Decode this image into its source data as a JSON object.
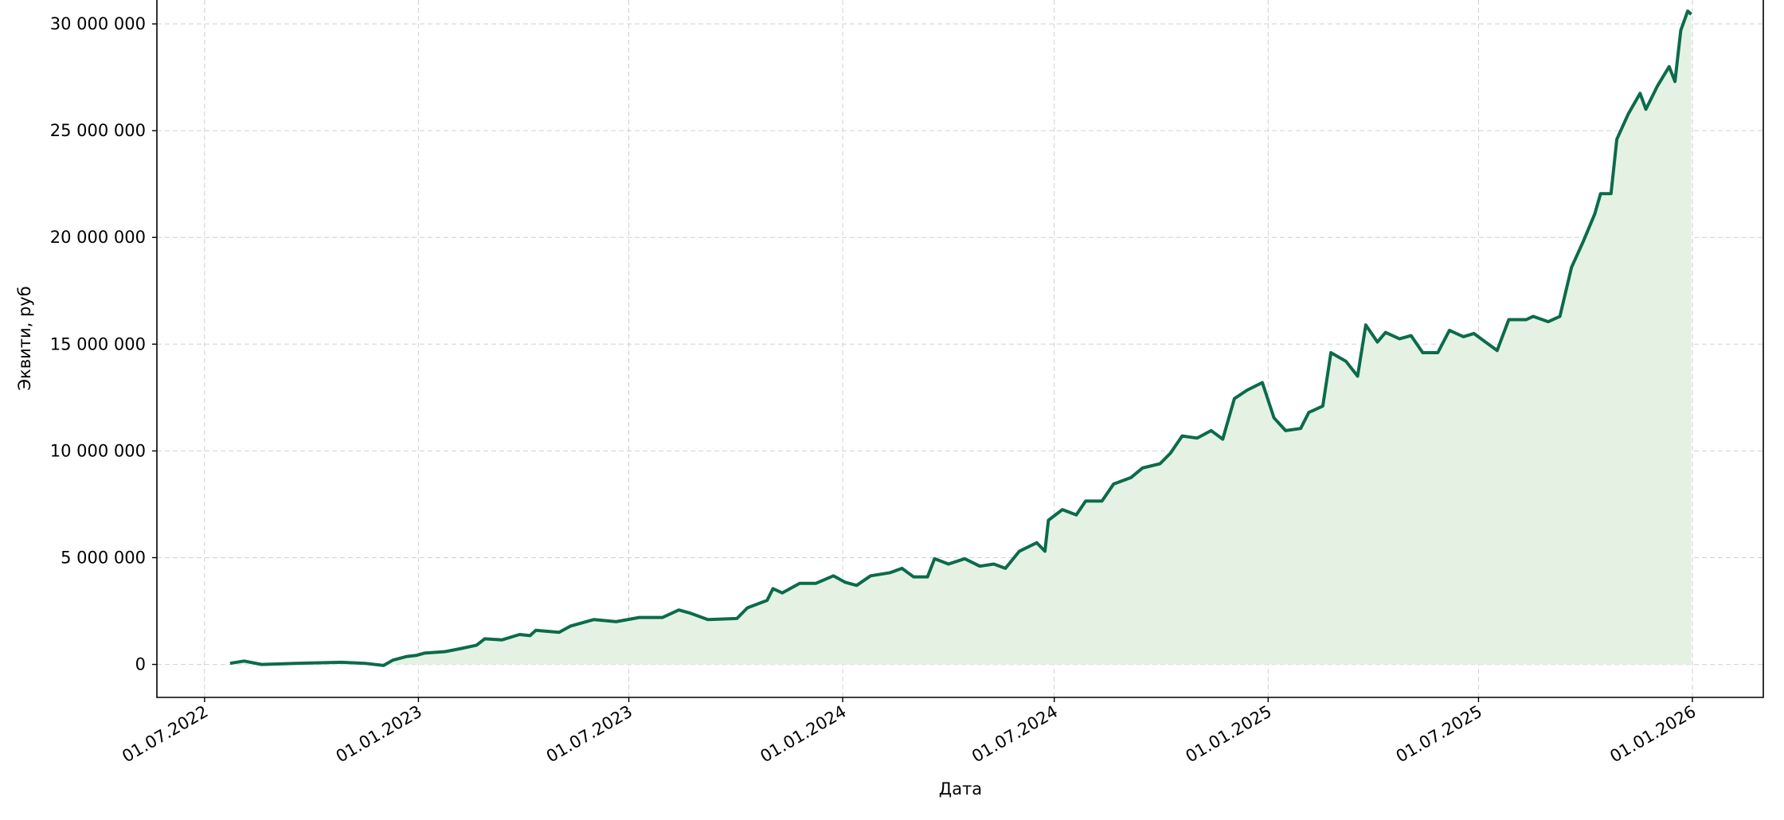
{
  "chart_data": {
    "type": "line",
    "xlabel": "Дата",
    "ylabel": "Эквити, руб",
    "x": [
      "23.07.2022",
      "04.08.2022",
      "19.08.2022",
      "18.09.2022",
      "27.10.2022",
      "16.11.2022",
      "02.12.2022",
      "10.12.2022",
      "22.12.2022",
      "30.12.2022",
      "06.01.2023",
      "24.01.2023",
      "07.02.2023",
      "20.02.2023",
      "27.02.2023",
      "14.03.2023",
      "29.03.2023",
      "07.04.2023",
      "12.04.2023",
      "02.05.2023",
      "12.05.2023",
      "01.06.2023",
      "20.06.2023",
      "10.07.2023",
      "30.07.2023",
      "13.08.2023",
      "23.08.2023",
      "07.09.2023",
      "02.10.2023",
      "11.10.2023",
      "28.10.2023",
      "02.11.2023",
      "10.11.2023",
      "25.11.2023",
      "09.12.2023",
      "24.12.2023",
      "03.01.2024",
      "13.01.2024",
      "25.01.2024",
      "11.02.2024",
      "21.02.2024",
      "02.03.2024",
      "14.03.2024",
      "20.03.2024",
      "01.04.2024",
      "15.04.2024",
      "28.04.2024",
      "10.05.2024",
      "20.05.2024",
      "01.06.2024",
      "16.06.2024",
      "23.06.2024",
      "26.06.2024",
      "08.07.2024",
      "20.07.2024",
      "28.07.2024",
      "11.08.2024",
      "21.08.2024",
      "05.09.2024",
      "15.09.2024",
      "30.09.2024",
      "09.10.2024",
      "19.10.2024",
      "01.11.2024",
      "13.11.2024",
      "23.11.2024",
      "03.12.2024",
      "14.12.2024",
      "27.12.2024",
      "06.01.2025",
      "16.01.2025",
      "29.01.2025",
      "05.02.2025",
      "17.02.2025",
      "24.02.2025",
      "09.03.2025",
      "19.03.2025",
      "26.03.2025",
      "05.04.2025",
      "12.04.2025",
      "24.04.2025",
      "04.05.2025",
      "14.05.2025",
      "27.05.2025",
      "06.06.2025",
      "18.06.2025",
      "27.06.2025",
      "07.07.2025",
      "17.07.2025",
      "27.07.2025",
      "11.08.2025",
      "17.08.2025",
      "30.08.2025",
      "09.09.2025",
      "19.09.2025",
      "29.09.2025",
      "09.10.2025",
      "14.10.2025",
      "23.10.2025",
      "28.10.2025",
      "07.11.2025",
      "17.11.2025",
      "22.11.2025",
      "02.12.2025",
      "12.12.2025",
      "17.12.2025",
      "22.12.2025",
      "26.12.2025",
      "28.12.2025",
      "31.12.2025"
    ],
    "series": [
      {
        "color": "#0b6b4b",
        "fill": "#e5f2e3",
        "values": [
          50000,
          160000,
          0,
          50000,
          100000,
          50000,
          -50000,
          200000,
          370000,
          420000,
          530000,
          600000,
          750000,
          900000,
          1200000,
          1150000,
          1400000,
          1350000,
          1600000,
          1500000,
          1800000,
          2100000,
          2000000,
          2200000,
          2200000,
          2550000,
          2400000,
          2100000,
          2150000,
          2650000,
          3000000,
          3550000,
          3350000,
          3800000,
          3800000,
          4150000,
          3850000,
          3700000,
          4150000,
          4300000,
          4500000,
          4100000,
          4100000,
          4950000,
          4700000,
          4950000,
          4600000,
          4700000,
          4500000,
          5300000,
          5700000,
          5300000,
          6750000,
          7250000,
          7000000,
          7650000,
          7650000,
          8450000,
          8750000,
          9200000,
          9400000,
          9900000,
          10700000,
          10600000,
          10950000,
          10550000,
          12450000,
          12850000,
          13200000,
          11550000,
          10950000,
          11050000,
          11800000,
          12100000,
          14600000,
          14200000,
          13500000,
          15900000,
          15100000,
          15550000,
          15250000,
          15400000,
          14600000,
          14600000,
          15650000,
          15350000,
          15500000,
          15100000,
          14700000,
          16150000,
          16150000,
          16300000,
          16050000,
          16300000,
          18600000,
          19800000,
          21100000,
          22050000,
          22050000,
          24600000,
          25800000,
          26750000,
          26000000,
          27100000,
          28000000,
          27300000,
          29700000,
          30300000,
          30600000,
          30450000
        ]
      }
    ],
    "xlim": [
      "21.05.2022",
      "03.03.2026"
    ],
    "xticks": [
      "01.07.2022",
      "01.01.2023",
      "01.07.2023",
      "01.01.2024",
      "01.07.2024",
      "01.01.2025",
      "01.07.2025",
      "01.01.2026"
    ],
    "ylim": [
      -1545000,
      31120000
    ],
    "yticks": [
      0,
      {
        "value": 5000000,
        "label": "5 000 000"
      },
      {
        "value": 10000000,
        "label": "10 000 000"
      },
      {
        "value": 15000000,
        "label": "15 000 000"
      },
      {
        "value": 20000000,
        "label": "20 000 000"
      },
      {
        "value": 25000000,
        "label": "25 000 000"
      },
      {
        "value": 30000000,
        "label": "30 000 000"
      }
    ],
    "grid": true
  }
}
